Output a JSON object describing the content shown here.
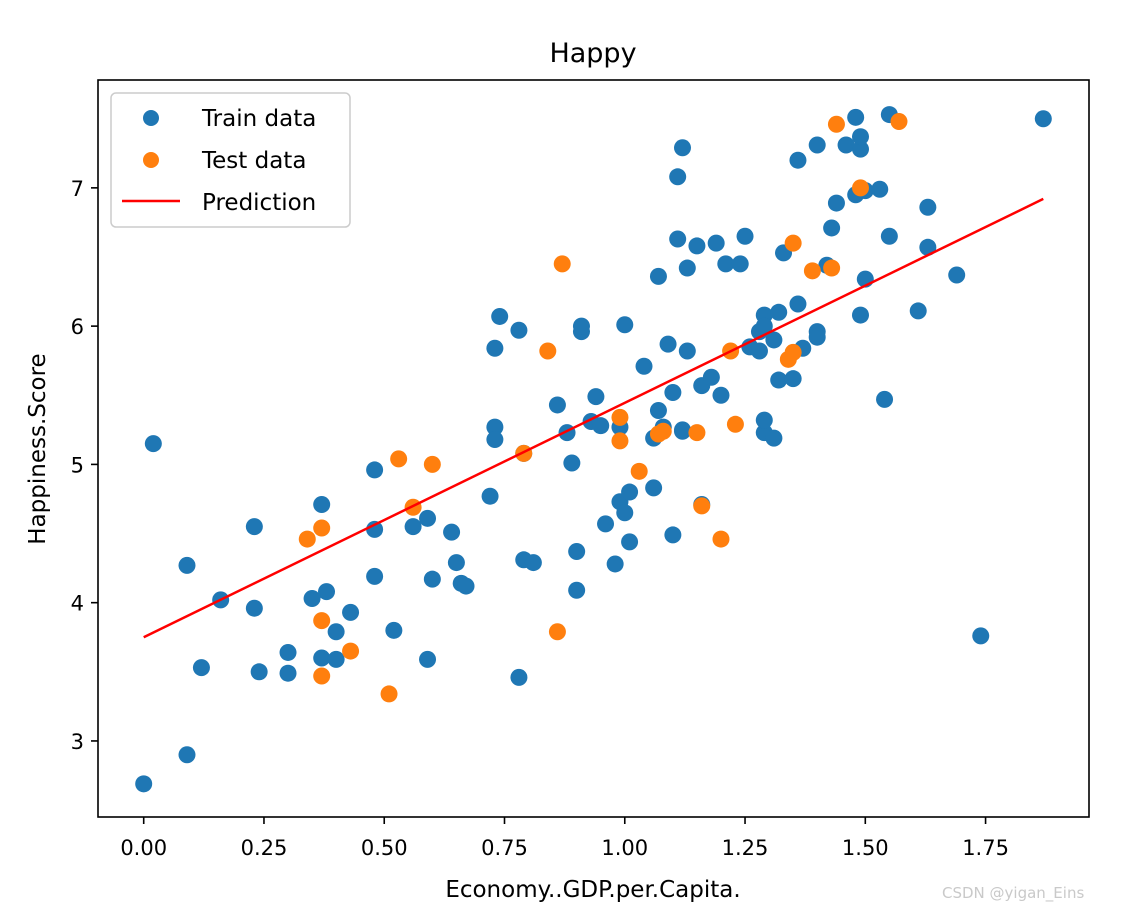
{
  "chart_data": {
    "type": "scatter",
    "title": "Happy",
    "xlabel": "Economy..GDP.per.Capita.",
    "ylabel": "Happiness.Score",
    "xlim": [
      -0.095,
      1.965
    ],
    "ylim": [
      2.45,
      7.78
    ],
    "xticks": [
      0.0,
      0.25,
      0.5,
      0.75,
      1.0,
      1.25,
      1.5,
      1.75
    ],
    "xtick_labels": [
      "0.00",
      "0.25",
      "0.50",
      "0.75",
      "1.00",
      "1.25",
      "1.50",
      "1.75"
    ],
    "yticks": [
      3,
      4,
      5,
      6,
      7
    ],
    "ytick_labels": [
      "3",
      "4",
      "5",
      "6",
      "7"
    ],
    "grid": false,
    "legend_position": "upper-left",
    "legend": [
      "Train data",
      "Test data",
      "Prediction"
    ],
    "colors": {
      "train": "#1f77b4",
      "test": "#ff7f0e",
      "prediction": "#ff0000"
    },
    "series": [
      {
        "name": "Train data",
        "kind": "scatter",
        "x": [
          0.0,
          0.09,
          0.02,
          0.09,
          0.12,
          0.16,
          0.23,
          0.23,
          0.24,
          0.3,
          0.3,
          0.35,
          0.37,
          0.37,
          0.38,
          0.4,
          0.4,
          0.43,
          0.48,
          0.48,
          0.48,
          0.52,
          0.56,
          0.59,
          0.59,
          0.6,
          0.64,
          0.65,
          0.66,
          0.67,
          0.72,
          0.73,
          0.73,
          0.73,
          0.74,
          0.78,
          0.78,
          0.79,
          0.79,
          0.81,
          0.86,
          0.88,
          0.89,
          0.9,
          0.9,
          0.91,
          0.91,
          0.93,
          0.94,
          0.95,
          0.96,
          0.98,
          0.99,
          0.99,
          1.0,
          1.0,
          1.01,
          1.01,
          1.04,
          1.06,
          1.06,
          1.07,
          1.07,
          1.08,
          1.09,
          1.1,
          1.1,
          1.11,
          1.11,
          1.12,
          1.12,
          1.13,
          1.13,
          1.15,
          1.16,
          1.16,
          1.18,
          1.19,
          1.2,
          1.21,
          1.24,
          1.25,
          1.26,
          1.28,
          1.28,
          1.29,
          1.29,
          1.29,
          1.29,
          1.31,
          1.31,
          1.32,
          1.32,
          1.33,
          1.35,
          1.36,
          1.36,
          1.37,
          1.4,
          1.4,
          1.4,
          1.42,
          1.43,
          1.44,
          1.46,
          1.48,
          1.48,
          1.49,
          1.49,
          1.49,
          1.5,
          1.5,
          1.53,
          1.54,
          1.55,
          1.55,
          1.61,
          1.63,
          1.63,
          1.69,
          1.74,
          1.87,
          1.12
        ],
        "y": [
          2.69,
          2.9,
          5.15,
          4.27,
          3.53,
          4.02,
          4.55,
          3.96,
          3.5,
          3.49,
          3.64,
          4.03,
          3.6,
          4.71,
          4.08,
          3.59,
          3.79,
          3.93,
          4.96,
          4.53,
          4.19,
          3.8,
          4.55,
          4.61,
          3.59,
          4.17,
          4.51,
          4.29,
          4.14,
          4.12,
          4.77,
          5.27,
          5.18,
          5.84,
          6.07,
          3.46,
          5.97,
          4.31,
          5.08,
          4.29,
          5.43,
          5.23,
          5.01,
          4.09,
          4.37,
          5.96,
          6.0,
          5.31,
          5.49,
          5.28,
          4.57,
          4.28,
          4.73,
          5.27,
          4.65,
          6.01,
          4.8,
          4.44,
          5.71,
          5.19,
          4.83,
          6.36,
          5.39,
          5.27,
          5.87,
          5.52,
          4.49,
          7.08,
          6.63,
          5.24,
          5.25,
          6.42,
          5.82,
          6.58,
          5.57,
          4.71,
          5.63,
          6.6,
          5.5,
          6.45,
          6.45,
          6.65,
          5.85,
          5.82,
          5.96,
          6.08,
          5.23,
          5.32,
          6.0,
          5.19,
          5.9,
          5.61,
          6.1,
          6.53,
          5.62,
          6.16,
          7.2,
          5.84,
          5.96,
          7.31,
          5.92,
          6.44,
          6.71,
          6.89,
          7.31,
          7.51,
          6.95,
          6.08,
          7.28,
          7.37,
          6.34,
          6.98,
          6.99,
          5.47,
          7.53,
          6.65,
          6.11,
          6.57,
          6.86,
          6.37,
          3.76,
          7.5,
          7.29
        ]
      },
      {
        "name": "Test data",
        "kind": "scatter",
        "x": [
          0.34,
          0.37,
          0.37,
          0.37,
          0.43,
          0.51,
          0.53,
          0.56,
          0.6,
          0.79,
          0.84,
          0.86,
          0.87,
          0.99,
          0.99,
          1.03,
          1.08,
          1.15,
          1.16,
          1.2,
          1.22,
          1.23,
          1.34,
          1.35,
          1.35,
          1.39,
          1.43,
          1.44,
          1.49,
          1.57,
          1.07
        ],
        "y": [
          4.46,
          4.54,
          3.87,
          3.47,
          3.65,
          3.34,
          5.04,
          4.69,
          5.0,
          5.08,
          5.82,
          3.79,
          6.45,
          5.17,
          5.34,
          4.95,
          5.24,
          5.23,
          4.7,
          4.46,
          5.82,
          5.29,
          5.76,
          5.81,
          6.6,
          6.4,
          6.42,
          7.46,
          7.0,
          7.48,
          5.22
        ]
      },
      {
        "name": "Prediction",
        "kind": "line",
        "x": [
          0.0,
          1.87
        ],
        "y": [
          3.75,
          6.92
        ]
      }
    ]
  },
  "watermark": "CSDN @yigan_Eins"
}
